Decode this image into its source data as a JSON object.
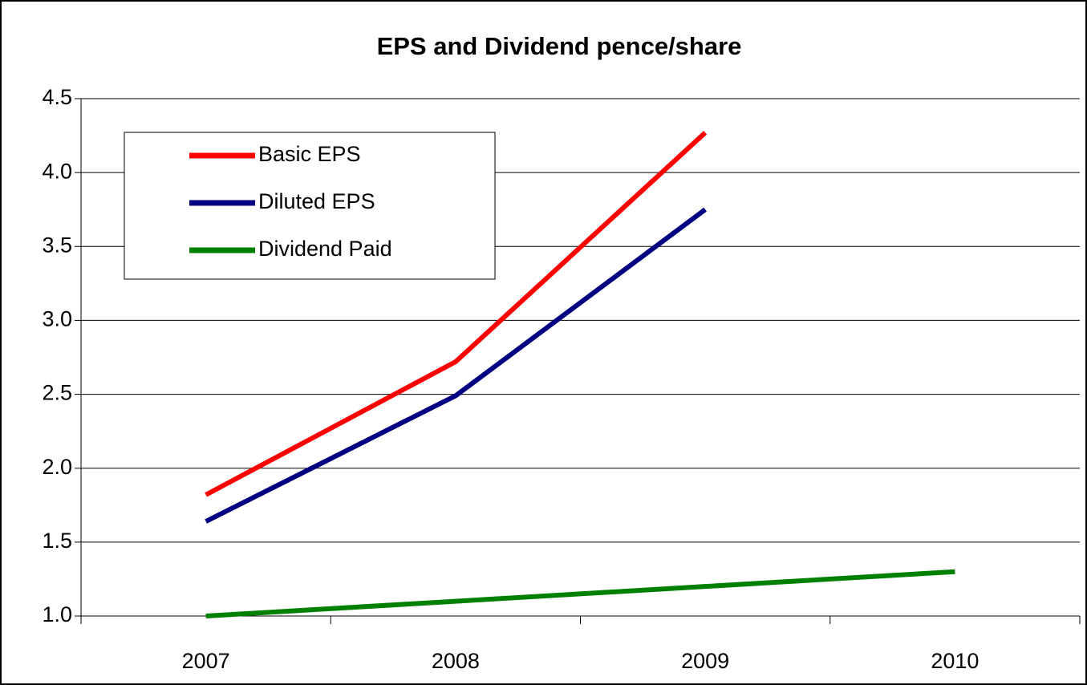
{
  "chart_data": {
    "type": "line",
    "title": "EPS and Dividend pence/share",
    "categories": [
      "2007",
      "2008",
      "2009",
      "2010"
    ],
    "series": [
      {
        "name": "Basic EPS",
        "color": "#ff0000",
        "values": [
          1.82,
          2.72,
          4.27,
          null
        ]
      },
      {
        "name": "Diluted EPS",
        "color": "#000080",
        "values": [
          1.64,
          2.49,
          3.75,
          null
        ]
      },
      {
        "name": "Dividend Paid",
        "color": "#008000",
        "values": [
          1.0,
          1.1,
          1.2,
          1.3
        ]
      }
    ],
    "ylim": [
      1.0,
      4.5
    ],
    "yticks": [
      {
        "value": 1.0,
        "label": "1.0"
      },
      1.5,
      {
        "value": 2.0,
        "label": "2.0"
      },
      2.5,
      {
        "value": 3.0,
        "label": "3.0"
      },
      3.5,
      {
        "value": 4.0,
        "label": "4.0"
      },
      4.5
    ],
    "grid": true,
    "legend": "upper left"
  }
}
